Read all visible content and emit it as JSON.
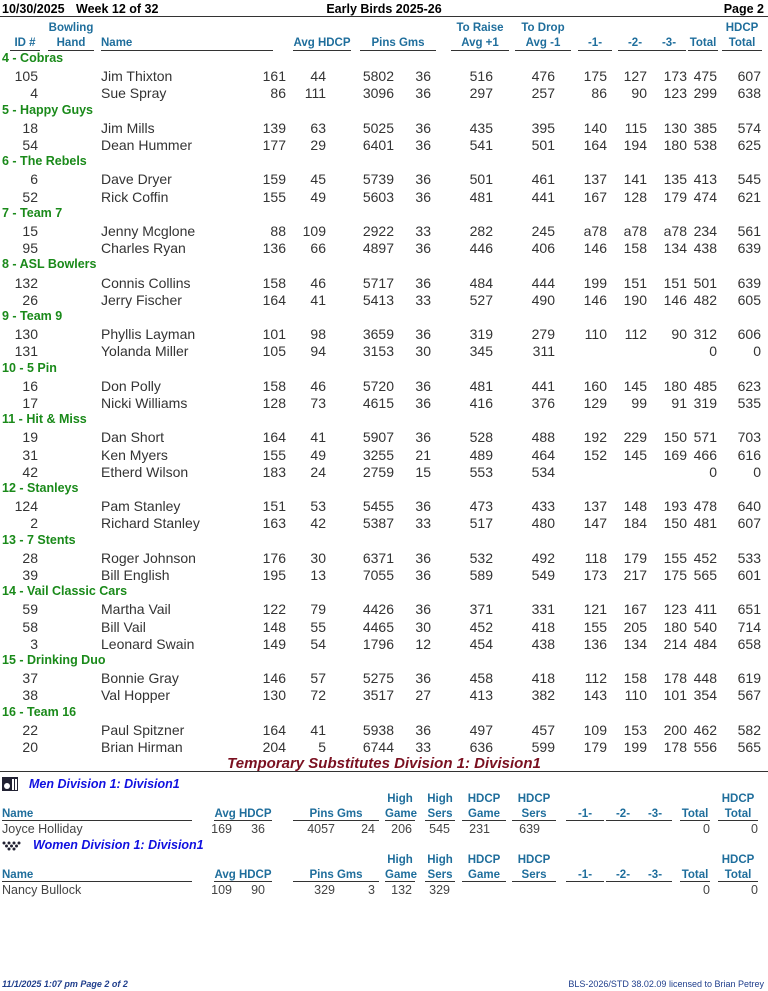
{
  "header": {
    "date": "10/30/2025",
    "week": "Week 12 of 32",
    "title": "Early Birds 2025-26",
    "page": "Page 2"
  },
  "columns": {
    "id": "ID #",
    "hand1": "Bowling",
    "hand2": "Hand",
    "name": "Name",
    "avg_hdcp": "Avg HDCP",
    "pins_gms": "Pins  Gms",
    "raise1": "To Raise",
    "raise2": "Avg +1",
    "drop1": "To Drop",
    "drop2": "Avg -1",
    "g1": "-1-",
    "g2": "-2-",
    "g3": "-3-",
    "total": "Total",
    "ht1": "HDCP",
    "ht2": "Total"
  },
  "teams": [
    {
      "name": "4 - Cobras",
      "players": [
        [
          "105",
          "Jim Thixton",
          "161",
          "44",
          "5802",
          "36",
          "516",
          "476",
          "175",
          "127",
          "173",
          "475",
          "607"
        ],
        [
          "4",
          "Sue Spray",
          "86",
          "111",
          "3096",
          "36",
          "297",
          "257",
          "86",
          "90",
          "123",
          "299",
          "638"
        ]
      ]
    },
    {
      "name": "5 - Happy Guys",
      "players": [
        [
          "18",
          "Jim Mills",
          "139",
          "63",
          "5025",
          "36",
          "435",
          "395",
          "140",
          "115",
          "130",
          "385",
          "574"
        ],
        [
          "54",
          "Dean Hummer",
          "177",
          "29",
          "6401",
          "36",
          "541",
          "501",
          "164",
          "194",
          "180",
          "538",
          "625"
        ]
      ]
    },
    {
      "name": "6 - The Rebels",
      "players": [
        [
          "6",
          "Dave Dryer",
          "159",
          "45",
          "5739",
          "36",
          "501",
          "461",
          "137",
          "141",
          "135",
          "413",
          "545"
        ],
        [
          "52",
          "Rick Coffin",
          "155",
          "49",
          "5603",
          "36",
          "481",
          "441",
          "167",
          "128",
          "179",
          "474",
          "621"
        ]
      ]
    },
    {
      "name": "7 - Team 7",
      "players": [
        [
          "15",
          "Jenny Mcglone",
          "88",
          "109",
          "2922",
          "33",
          "282",
          "245",
          "a78",
          "a78",
          "a78",
          "234",
          "561"
        ],
        [
          "95",
          "Charles Ryan",
          "136",
          "66",
          "4897",
          "36",
          "446",
          "406",
          "146",
          "158",
          "134",
          "438",
          "639"
        ]
      ]
    },
    {
      "name": "8 - ASL Bowlers",
      "players": [
        [
          "132",
          "Connis Collins",
          "158",
          "46",
          "5717",
          "36",
          "484",
          "444",
          "199",
          "151",
          "151",
          "501",
          "639"
        ],
        [
          "26",
          "Jerry Fischer",
          "164",
          "41",
          "5413",
          "33",
          "527",
          "490",
          "146",
          "190",
          "146",
          "482",
          "605"
        ]
      ]
    },
    {
      "name": "9 - Team 9",
      "players": [
        [
          "130",
          "Phyllis Layman",
          "101",
          "98",
          "3659",
          "36",
          "319",
          "279",
          "110",
          "112",
          "90",
          "312",
          "606"
        ],
        [
          "131",
          "Yolanda Miller",
          "105",
          "94",
          "3153",
          "30",
          "345",
          "311",
          "",
          "",
          "",
          "0",
          "0"
        ]
      ]
    },
    {
      "name": "10 - 5 Pin",
      "players": [
        [
          "16",
          "Don Polly",
          "158",
          "46",
          "5720",
          "36",
          "481",
          "441",
          "160",
          "145",
          "180",
          "485",
          "623"
        ],
        [
          "17",
          "Nicki Williams",
          "128",
          "73",
          "4615",
          "36",
          "416",
          "376",
          "129",
          "99",
          "91",
          "319",
          "535"
        ]
      ]
    },
    {
      "name": "11 - Hit & Miss",
      "players": [
        [
          "19",
          "Dan Short",
          "164",
          "41",
          "5907",
          "36",
          "528",
          "488",
          "192",
          "229",
          "150",
          "571",
          "703"
        ],
        [
          "31",
          "Ken Myers",
          "155",
          "49",
          "3255",
          "21",
          "489",
          "464",
          "152",
          "145",
          "169",
          "466",
          "616"
        ],
        [
          "42",
          "Etherd Wilson",
          "183",
          "24",
          "2759",
          "15",
          "553",
          "534",
          "",
          "",
          "",
          "0",
          "0"
        ]
      ]
    },
    {
      "name": "12 - Stanleys",
      "players": [
        [
          "124",
          "Pam Stanley",
          "151",
          "53",
          "5455",
          "36",
          "473",
          "433",
          "137",
          "148",
          "193",
          "478",
          "640"
        ],
        [
          "2",
          "Richard Stanley",
          "163",
          "42",
          "5387",
          "33",
          "517",
          "480",
          "147",
          "184",
          "150",
          "481",
          "607"
        ]
      ]
    },
    {
      "name": "13 - 7 Stents",
      "players": [
        [
          "28",
          "Roger Johnson",
          "176",
          "30",
          "6371",
          "36",
          "532",
          "492",
          "118",
          "179",
          "155",
          "452",
          "533"
        ],
        [
          "39",
          "Bill English",
          "195",
          "13",
          "7055",
          "36",
          "589",
          "549",
          "173",
          "217",
          "175",
          "565",
          "601"
        ]
      ]
    },
    {
      "name": "14 - Vail Classic Cars",
      "players": [
        [
          "59",
          "Martha Vail",
          "122",
          "79",
          "4426",
          "36",
          "371",
          "331",
          "121",
          "167",
          "123",
          "411",
          "651"
        ],
        [
          "58",
          "Bill Vail",
          "148",
          "55",
          "4465",
          "30",
          "452",
          "418",
          "155",
          "205",
          "180",
          "540",
          "714"
        ],
        [
          "3",
          "Leonard Swain",
          "149",
          "54",
          "1796",
          "12",
          "454",
          "438",
          "136",
          "134",
          "214",
          "484",
          "658"
        ]
      ]
    },
    {
      "name": "15 - Drinking Duo",
      "players": [
        [
          "37",
          "Bonnie Gray",
          "146",
          "57",
          "5275",
          "36",
          "458",
          "418",
          "112",
          "158",
          "178",
          "448",
          "619"
        ],
        [
          "38",
          "Val Hopper",
          "130",
          "72",
          "3517",
          "27",
          "413",
          "382",
          "143",
          "110",
          "101",
          "354",
          "567"
        ]
      ]
    },
    {
      "name": "16 - Team 16",
      "players": [
        [
          "22",
          "Paul Spitzner",
          "164",
          "41",
          "5938",
          "36",
          "497",
          "457",
          "109",
          "153",
          "200",
          "462",
          "582"
        ],
        [
          "20",
          "Brian Hirman",
          "204",
          "5",
          "6744",
          "33",
          "636",
          "599",
          "179",
          "199",
          "178",
          "556",
          "565"
        ]
      ]
    }
  ],
  "subs": {
    "title": "Temporary Substitutes   Division 1: Division1",
    "columns": {
      "name": "Name",
      "avg_hdcp": "Avg HDCP",
      "pins_gms": "Pins  Gms",
      "hg1": "High",
      "hg2": "Game",
      "hs1": "High",
      "hs2": "Sers",
      "hdg1": "HDCP",
      "hdg2": "Game",
      "hds1": "HDCP",
      "hds2": "Sers",
      "g1": "-1-",
      "g2": "-2-",
      "g3": "-3-",
      "total": "Total",
      "ht1": "HDCP",
      "ht2": "Total"
    },
    "groups": [
      {
        "label": "Men   Division 1: Division1",
        "icon": "bowler-icon",
        "rows": [
          [
            "Joyce Holliday",
            "169",
            "36",
            "4057",
            "24",
            "206",
            "545",
            "231",
            "639",
            "",
            "",
            "",
            "0",
            "0"
          ]
        ]
      },
      {
        "label": "Women   Division 1: Division1",
        "icon": "pins-icon",
        "rows": [
          [
            "Nancy Bullock",
            "109",
            "90",
            "329",
            "3",
            "132",
            "329",
            "",
            "",
            "",
            "",
            "",
            "0",
            "0"
          ]
        ]
      }
    ]
  },
  "footer": {
    "left": "11/1/2025  1:07 pm  Page 2 of 2",
    "right": "BLS-2026/STD 38.02.09 licensed to Brian Petrey"
  },
  "colors": {
    "header": "#1f6e9c",
    "team": "#1a8a1a",
    "subs_title": "#7a1020",
    "division": "#1010e0"
  }
}
